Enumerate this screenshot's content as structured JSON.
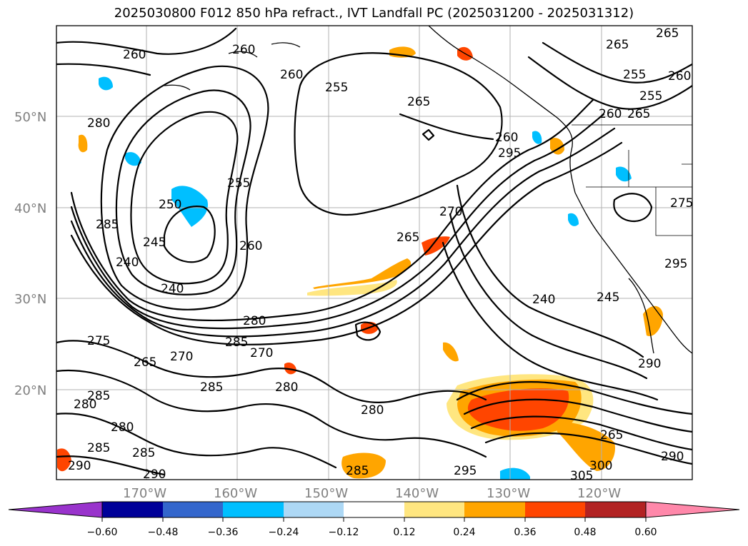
{
  "title": "2025030800 F012 850 hPa refract., IVT Landfall PC (2025031200 - 2025031312)",
  "lat_labels": [
    "50°N",
    "40°N",
    "30°N",
    "20°N"
  ],
  "lon_labels": [
    "170°W",
    "160°W",
    "150°W",
    "140°W",
    "130°W",
    "120°W"
  ],
  "contour_labels": [
    "260",
    "260",
    "260",
    "255",
    "265",
    "265",
    "255",
    "260",
    "255",
    "265",
    "260",
    "265",
    "260",
    "295",
    "280",
    "255",
    "250",
    "285",
    "245",
    "260",
    "240",
    "240",
    "270",
    "265",
    "275",
    "280",
    "285",
    "270",
    "265",
    "270",
    "280",
    "240",
    "245",
    "275",
    "295",
    "290",
    "285",
    "280",
    "285",
    "280",
    "285",
    "290",
    "290",
    "285",
    "295",
    "280",
    "285",
    "305",
    "300",
    "265",
    "290"
  ],
  "colorbar": {
    "ticks": [
      "−0.60",
      "−0.48",
      "−0.36",
      "−0.24",
      "−0.12",
      "0.12",
      "0.24",
      "0.36",
      "0.48",
      "0.60"
    ],
    "colors": [
      "#9933cc",
      "#000099",
      "#3366cc",
      "#00bfff",
      "#add8f5",
      "#ffffff",
      "#ffe680",
      "#ffa500",
      "#ff4500",
      "#b22222",
      "#ff88aa"
    ]
  }
}
